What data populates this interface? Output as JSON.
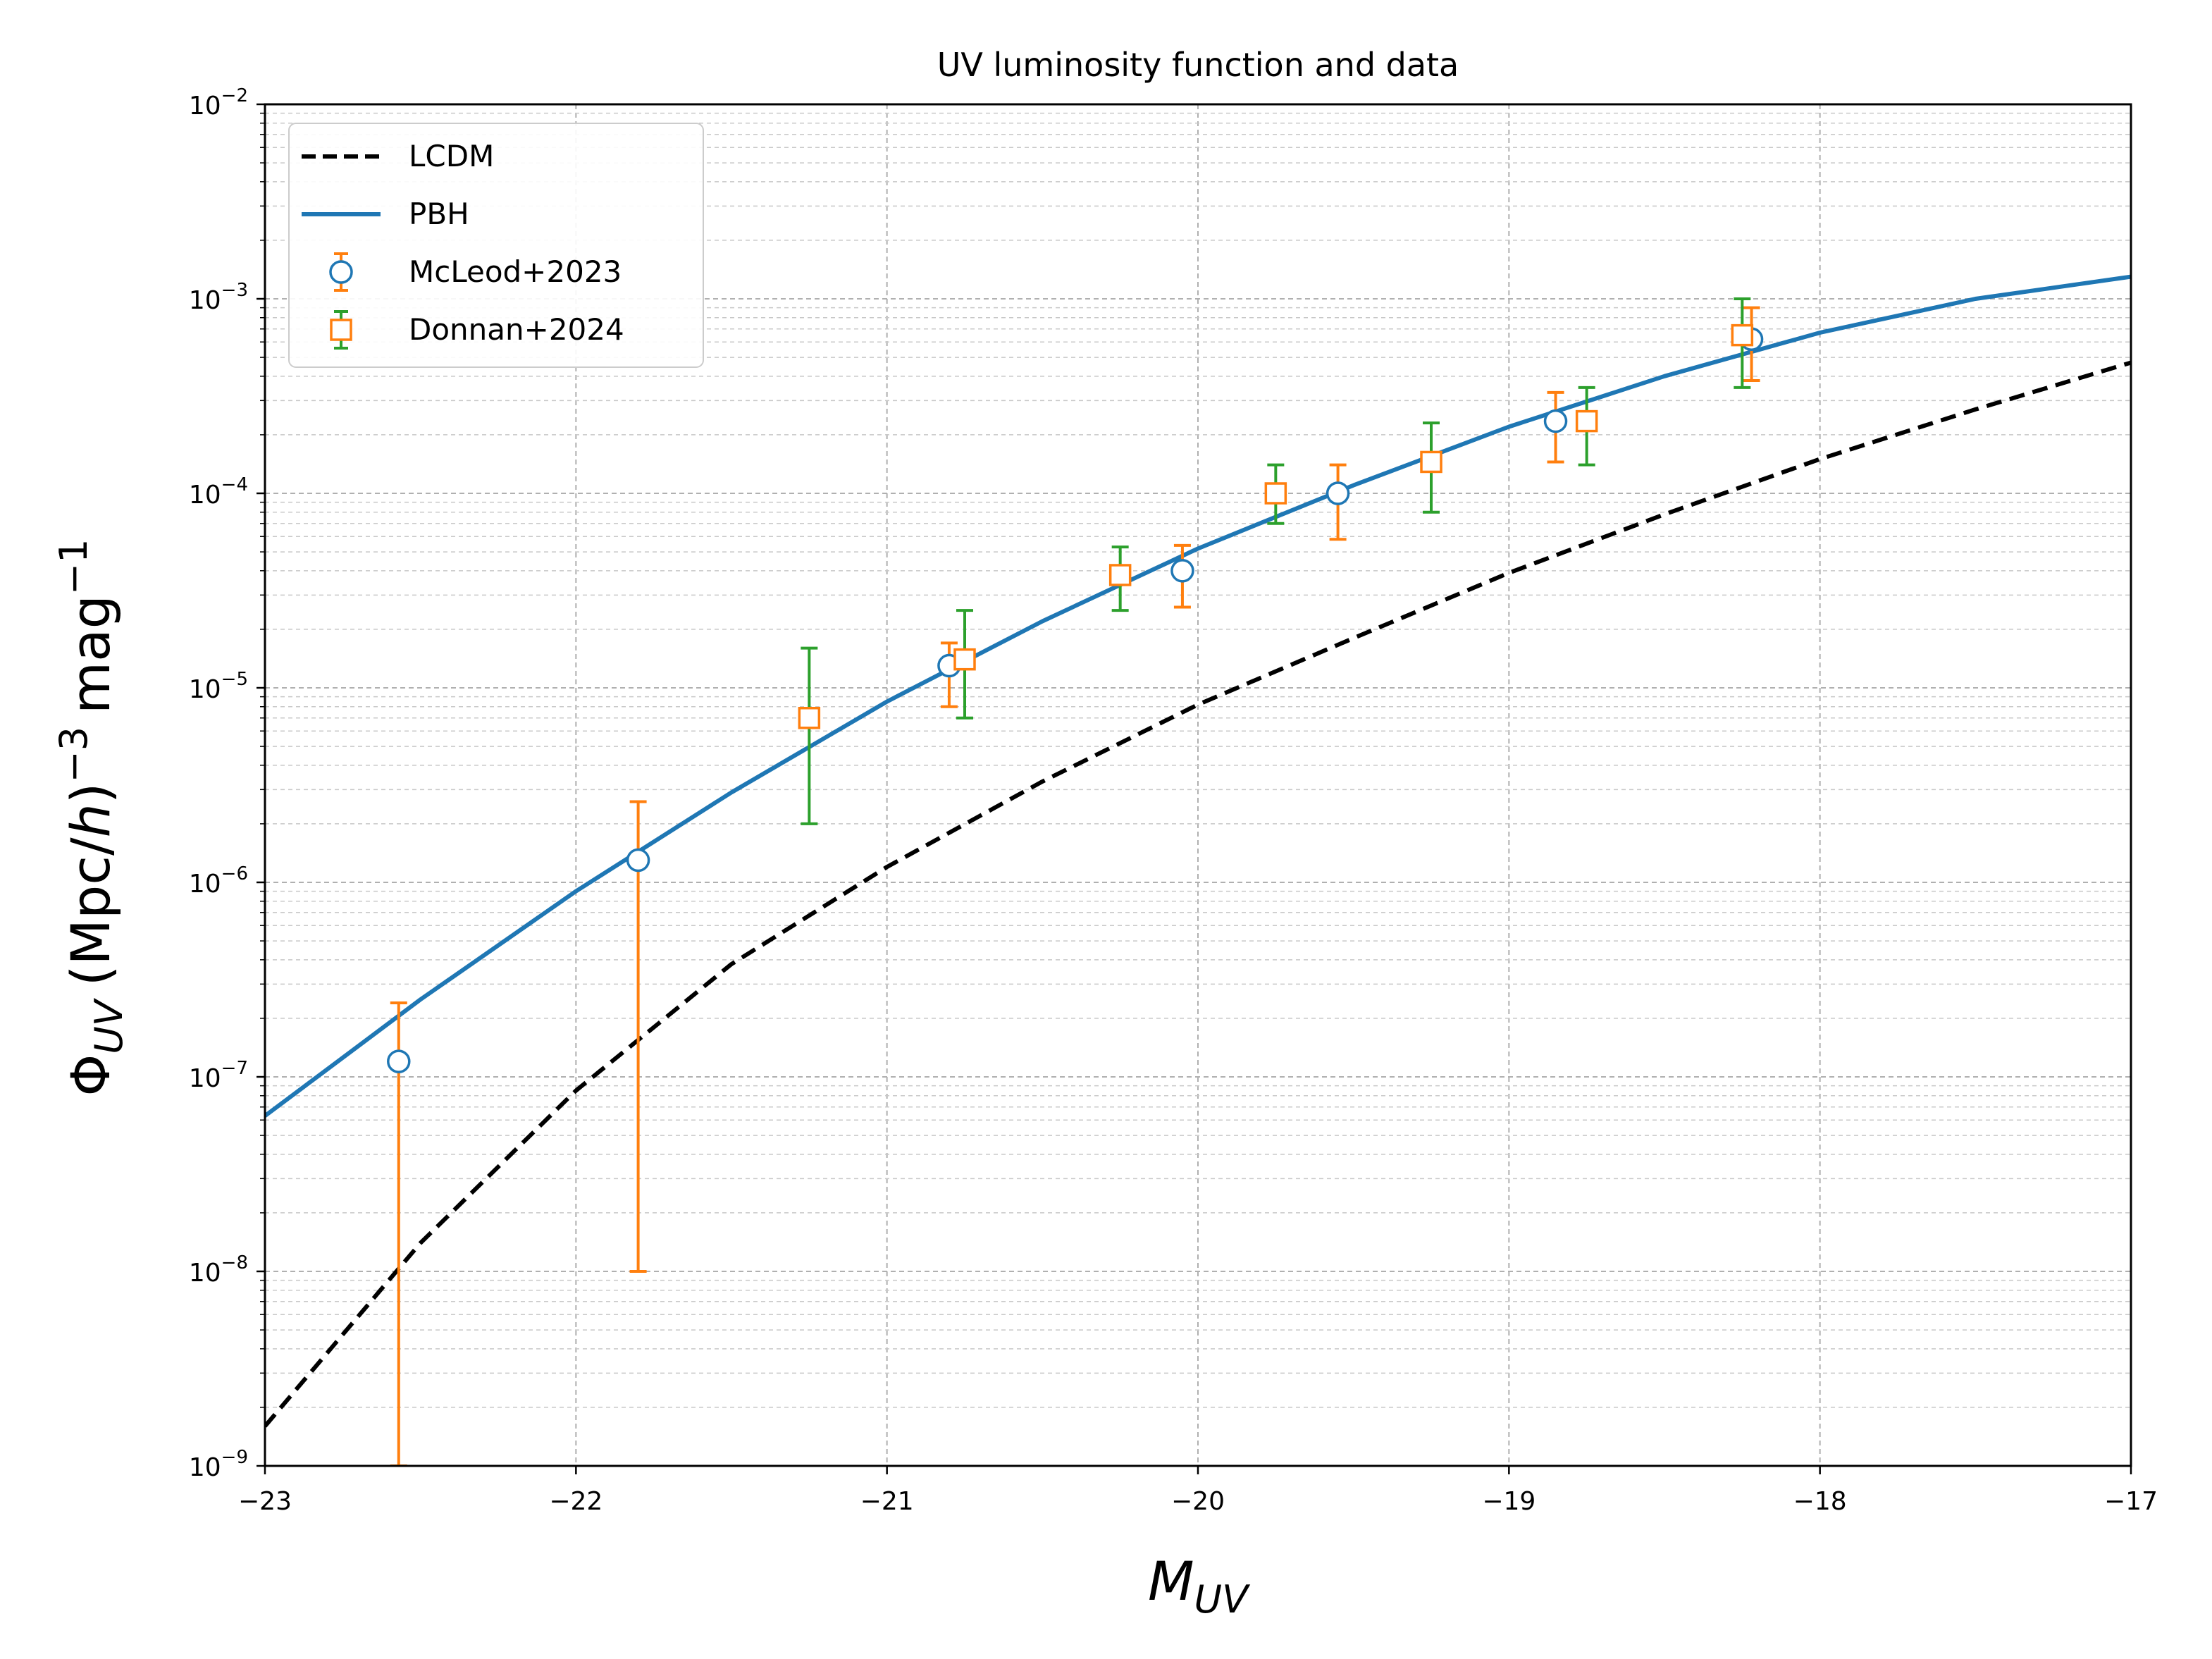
{
  "chart_data": {
    "type": "line",
    "title": "UV luminosity function and data",
    "xlabel": "M",
    "xlabel_sub": "UV",
    "ylabel": {
      "phi": "Φ",
      "phi_sub": "UV",
      "units_a": "(Mpc/",
      "units_h": "h",
      "units_b": ")",
      "exp1": "−3",
      "mag": "mag",
      "exp2": "−1"
    },
    "xlim": [
      -23,
      -17
    ],
    "ylim": [
      1e-09,
      0.01
    ],
    "yscale": "log",
    "grid": true,
    "legend_position": "upper left",
    "x_ticks": [
      -23,
      -22,
      -21,
      -20,
      -19,
      -18,
      -17
    ],
    "x_tick_labels": [
      "−23",
      "−22",
      "−21",
      "−20",
      "−19",
      "−18",
      "−17"
    ],
    "y_ticks": [
      {
        "value": 1e-09,
        "base": "10",
        "exp": "−9"
      },
      {
        "value": 1e-08,
        "base": "10",
        "exp": "−8"
      },
      {
        "value": 1e-07,
        "base": "10",
        "exp": "−7"
      },
      {
        "value": 1e-06,
        "base": "10",
        "exp": "−6"
      },
      {
        "value": 1e-05,
        "base": "10",
        "exp": "−5"
      },
      {
        "value": 0.0001,
        "base": "10",
        "exp": "−4"
      },
      {
        "value": 0.001,
        "base": "10",
        "exp": "−3"
      },
      {
        "value": 0.01,
        "base": "10",
        "exp": "−2"
      }
    ],
    "lines": [
      {
        "name": "LCDM",
        "color": "#000000",
        "style": "dashed",
        "x": [
          -23.0,
          -22.5,
          -22.0,
          -21.5,
          -21.0,
          -20.5,
          -20.0,
          -19.5,
          -19.0,
          -18.5,
          -18.0,
          -17.5,
          -17.0
        ],
        "y": [
          1.6e-09,
          1.4e-08,
          8.5e-08,
          3.8e-07,
          1.2e-06,
          3.3e-06,
          8.2e-06,
          1.8e-05,
          3.9e-05,
          7.8e-05,
          0.00015,
          0.00027,
          0.00047
        ]
      },
      {
        "name": "PBH",
        "color": "#1f77b4",
        "style": "solid",
        "x": [
          -23.0,
          -22.5,
          -22.0,
          -21.5,
          -21.0,
          -20.5,
          -20.0,
          -19.5,
          -19.0,
          -18.5,
          -18.0,
          -17.5,
          -17.0
        ],
        "y": [
          6.3e-08,
          2.5e-07,
          9e-07,
          2.9e-06,
          8.5e-06,
          2.2e-05,
          5.2e-05,
          0.00011,
          0.00022,
          0.0004,
          0.00067,
          0.001,
          0.0013
        ]
      }
    ],
    "series": [
      {
        "name": "McLeod+2023",
        "marker": "circle",
        "marker_color": "#1f77b4",
        "errorbar_color": "#ff7f0e",
        "points": [
          {
            "x": -22.57,
            "y": 1.2e-07,
            "lo": 1e-09,
            "hi": 2.4e-07
          },
          {
            "x": -21.8,
            "y": 1.3e-06,
            "lo": 1e-08,
            "hi": 2.6e-06
          },
          {
            "x": -20.8,
            "y": 1.3e-05,
            "lo": 8e-06,
            "hi": 1.7e-05
          },
          {
            "x": -20.05,
            "y": 4e-05,
            "lo": 2.6e-05,
            "hi": 5.4e-05
          },
          {
            "x": -19.55,
            "y": 0.0001,
            "lo": 5.8e-05,
            "hi": 0.00014
          },
          {
            "x": -18.85,
            "y": 0.000235,
            "lo": 0.000145,
            "hi": 0.00033
          },
          {
            "x": -18.22,
            "y": 0.00062,
            "lo": 0.00038,
            "hi": 0.0009
          }
        ]
      },
      {
        "name": "Donnan+2024",
        "marker": "square",
        "marker_color": "#ff7f0e",
        "errorbar_color": "#2ca02c",
        "points": [
          {
            "x": -21.25,
            "y": 7e-06,
            "lo": 2e-06,
            "hi": 1.6e-05
          },
          {
            "x": -20.75,
            "y": 1.4e-05,
            "lo": 7e-06,
            "hi": 2.5e-05
          },
          {
            "x": -20.25,
            "y": 3.8e-05,
            "lo": 2.5e-05,
            "hi": 5.3e-05
          },
          {
            "x": -19.75,
            "y": 0.0001,
            "lo": 7e-05,
            "hi": 0.00014
          },
          {
            "x": -19.25,
            "y": 0.000145,
            "lo": 8e-05,
            "hi": 0.00023
          },
          {
            "x": -18.75,
            "y": 0.000235,
            "lo": 0.00014,
            "hi": 0.00035
          },
          {
            "x": -18.25,
            "y": 0.00065,
            "lo": 0.00035,
            "hi": 0.001
          }
        ]
      }
    ]
  }
}
